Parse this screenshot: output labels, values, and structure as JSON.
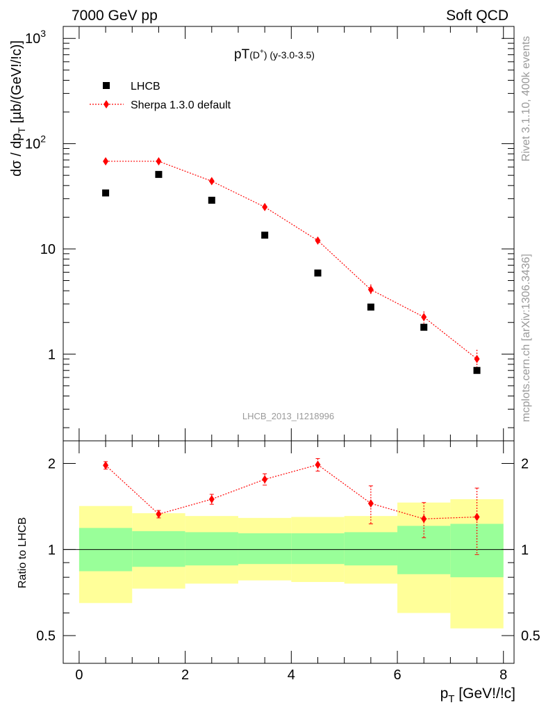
{
  "header": {
    "left": "7000 GeV pp",
    "right": "Soft QCD"
  },
  "side_text": {
    "rivet": "Rivet 3.1.10,  400k events",
    "mcplots": "mcplots.cern.ch [arXiv:1306.3436]"
  },
  "chart_data": [
    {
      "type": "scatter",
      "title_main": "pT",
      "title_sub": "(D",
      "title_sup": "+",
      "title_rest": ") (y-3.0-3.5)",
      "watermark": "LHCB_2013_I1218996",
      "ylabel_main": "dσ / dp",
      "ylabel_sub": "T",
      "ylabel_rest": " [µb/(GeV!/!c)]",
      "yscale": "log",
      "ylim": [
        0.15,
        1300
      ],
      "xlim": [
        -0.3,
        8.2
      ],
      "y_tick_labels": [
        "1",
        "10",
        "10",
        "10"
      ],
      "y_tick_sups": [
        "2",
        "3"
      ],
      "legend_placement": "top-left",
      "series": [
        {
          "name": "LHCB",
          "marker": "square",
          "color": "#000000",
          "x": [
            0.5,
            1.5,
            2.5,
            3.5,
            4.5,
            5.5,
            6.5,
            7.5
          ],
          "y": [
            34,
            51,
            29,
            13.5,
            5.9,
            2.8,
            1.8,
            0.7
          ]
        },
        {
          "name": "Sherpa 1.3.0 default",
          "marker": "diamond",
          "color": "#ff0000",
          "line": "dotted",
          "x": [
            0.5,
            1.5,
            2.5,
            3.5,
            4.5,
            5.5,
            6.5,
            7.5
          ],
          "y": [
            68,
            68,
            44,
            25,
            12,
            4.1,
            2.25,
            0.9
          ],
          "yerr": [
            2,
            2,
            1.5,
            1,
            0.6,
            0.5,
            0.3,
            0.2
          ]
        }
      ]
    },
    {
      "type": "scatter",
      "ylabel": "Ratio to LHCB",
      "xlabel_main": "p",
      "xlabel_sub": "T",
      "xlabel_rest": " [GeV!/!c]",
      "yscale": "log",
      "ylim": [
        0.4,
        2.4
      ],
      "xlim": [
        -0.3,
        8.2
      ],
      "x_ticks": [
        0,
        2,
        4,
        6,
        8
      ],
      "y_ticks": [
        0.5,
        1,
        2
      ],
      "reference_line": 1,
      "bands": {
        "bins": [
          [
            0,
            1
          ],
          [
            1,
            2
          ],
          [
            2,
            3
          ],
          [
            3,
            4
          ],
          [
            4,
            5
          ],
          [
            5,
            6
          ],
          [
            6,
            7
          ],
          [
            7,
            8
          ]
        ],
        "inner": [
          [
            0.84,
            1.19
          ],
          [
            0.87,
            1.16
          ],
          [
            0.88,
            1.15
          ],
          [
            0.89,
            1.14
          ],
          [
            0.89,
            1.14
          ],
          [
            0.88,
            1.15
          ],
          [
            0.82,
            1.21
          ],
          [
            0.8,
            1.23
          ]
        ],
        "outer": [
          [
            0.65,
            1.42
          ],
          [
            0.73,
            1.34
          ],
          [
            0.76,
            1.31
          ],
          [
            0.78,
            1.29
          ],
          [
            0.77,
            1.3
          ],
          [
            0.76,
            1.31
          ],
          [
            0.6,
            1.46
          ],
          [
            0.53,
            1.5
          ]
        ],
        "inner_color": "#99ff99",
        "outer_color": "#ffff99"
      },
      "series": [
        {
          "name": "Sherpa 1.3.0 default",
          "marker": "diamond",
          "color": "#ff0000",
          "line": "dotted",
          "x": [
            0.5,
            1.5,
            2.5,
            3.5,
            4.5,
            5.5,
            6.5,
            7.5
          ],
          "y": [
            1.97,
            1.33,
            1.5,
            1.76,
            1.98,
            1.45,
            1.28,
            1.3
          ],
          "yerr": [
            0.06,
            0.04,
            0.06,
            0.08,
            0.1,
            0.22,
            0.18,
            0.34
          ]
        }
      ]
    }
  ]
}
